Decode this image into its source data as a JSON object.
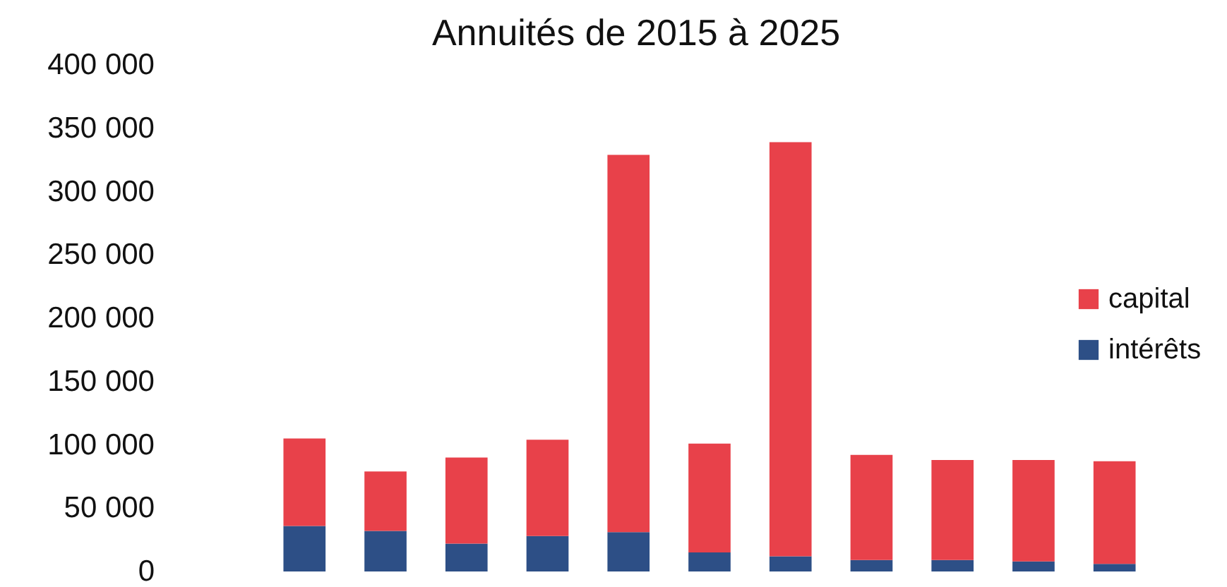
{
  "chart_data": {
    "type": "bar",
    "title": "Annuités de 2015 à 2025",
    "stacked": true,
    "categories": [
      null,
      null,
      null,
      null,
      null,
      null,
      null,
      null,
      null,
      null,
      null
    ],
    "series": [
      {
        "name": "intérêts",
        "color": "#2d4f86",
        "values": [
          36000,
          32000,
          22000,
          28000,
          31000,
          15000,
          12000,
          9000,
          9000,
          8000,
          6000
        ]
      },
      {
        "name": "capital",
        "color": "#e8414a",
        "values": [
          69000,
          47000,
          68000,
          76000,
          298000,
          86000,
          327000,
          83000,
          79000,
          80000,
          81000
        ]
      }
    ],
    "ylim": [
      0,
      400000
    ],
    "yticks": [
      {
        "value": 0,
        "label": "0"
      },
      {
        "value": 50000,
        "label": "50 000"
      },
      {
        "value": 100000,
        "label": "100 000"
      },
      {
        "value": 150000,
        "label": "150 000"
      },
      {
        "value": 200000,
        "label": "200 000"
      },
      {
        "value": 250000,
        "label": "250 000"
      },
      {
        "value": 300000,
        "label": "300 000"
      },
      {
        "value": 350000,
        "label": "350 000"
      },
      {
        "value": 400000,
        "label": "400 000"
      }
    ],
    "grid": false,
    "legend": "right",
    "tick_labels": "y"
  }
}
